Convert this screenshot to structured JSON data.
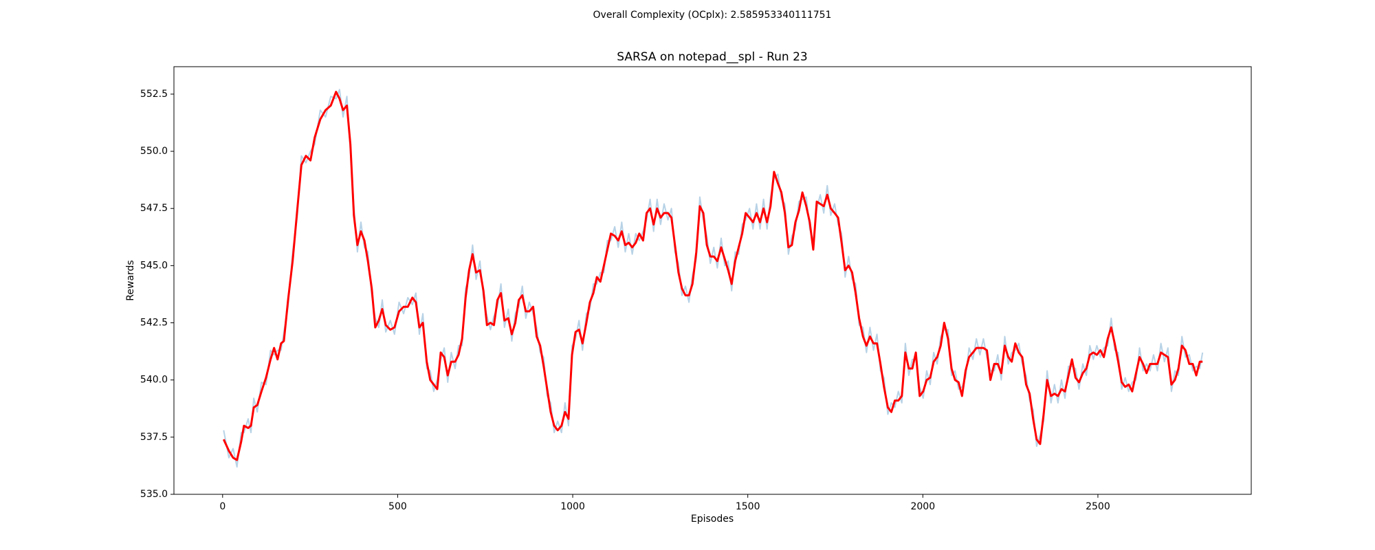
{
  "chart_data": {
    "type": "line",
    "suptitle": "Overall Complexity (OCplx): 2.585953340111751",
    "suptitle_color": "#ff0000",
    "title": "SARSA on notepad__spl - Run 23",
    "xlabel": "Episodes",
    "ylabel": "Rewards",
    "grid": false,
    "xlim": [
      -139,
      2938
    ],
    "ylim": [
      535,
      553.7
    ],
    "xticks": [
      0,
      500,
      1000,
      1500,
      2000,
      2500
    ],
    "yticks": [
      {
        "value": 535,
        "label": "535.0"
      },
      537.5,
      {
        "value": 540,
        "label": "540.0"
      },
      542.5,
      {
        "value": 545,
        "label": "545.0"
      },
      547.5,
      {
        "value": 550,
        "label": "550.0"
      },
      552.5
    ],
    "x": [
      3,
      18,
      30,
      41,
      53,
      61,
      73,
      81,
      89,
      99,
      111,
      124,
      137,
      147,
      157,
      167,
      175,
      187,
      200,
      213,
      225,
      238,
      251,
      263,
      279,
      294,
      309,
      324,
      334,
      344,
      355,
      365,
      375,
      385,
      395,
      405,
      415,
      426,
      436,
      446,
      456,
      466,
      479,
      491,
      504,
      517,
      529,
      542,
      552,
      562,
      572,
      583,
      593,
      603,
      613,
      623,
      633,
      643,
      653,
      664,
      674,
      684,
      694,
      704,
      714,
      724,
      735,
      745,
      755,
      765,
      775,
      785,
      795,
      805,
      816,
      826,
      836,
      846,
      856,
      866,
      876,
      887,
      897,
      907,
      917,
      927,
      937,
      947,
      957,
      968,
      978,
      988,
      998,
      1008,
      1018,
      1028,
      1039,
      1049,
      1059,
      1069,
      1079,
      1089,
      1099,
      1109,
      1120,
      1130,
      1140,
      1150,
      1160,
      1170,
      1180,
      1190,
      1201,
      1211,
      1221,
      1231,
      1241,
      1251,
      1261,
      1272,
      1282,
      1292,
      1302,
      1312,
      1322,
      1332,
      1342,
      1353,
      1363,
      1373,
      1383,
      1393,
      1403,
      1413,
      1424,
      1434,
      1444,
      1454,
      1464,
      1474,
      1484,
      1494,
      1505,
      1515,
      1525,
      1535,
      1545,
      1555,
      1565,
      1575,
      1586,
      1596,
      1606,
      1616,
      1626,
      1636,
      1646,
      1656,
      1667,
      1677,
      1687,
      1697,
      1707,
      1717,
      1727,
      1737,
      1748,
      1758,
      1768,
      1778,
      1788,
      1798,
      1808,
      1818,
      1829,
      1839,
      1849,
      1859,
      1869,
      1879,
      1889,
      1900,
      1910,
      1920,
      1930,
      1940,
      1950,
      1960,
      1970,
      1980,
      1991,
      2001,
      2011,
      2021,
      2031,
      2041,
      2051,
      2061,
      2072,
      2082,
      2092,
      2102,
      2112,
      2122,
      2132,
      2143,
      2153,
      2163,
      2173,
      2183,
      2193,
      2204,
      2214,
      2224,
      2234,
      2244,
      2254,
      2264,
      2274,
      2284,
      2295,
      2305,
      2315,
      2325,
      2335,
      2345,
      2355,
      2366,
      2376,
      2386,
      2396,
      2406,
      2416,
      2426,
      2436,
      2446,
      2457,
      2467,
      2477,
      2487,
      2497,
      2507,
      2517,
      2528,
      2538,
      2548,
      2558,
      2568,
      2578,
      2588,
      2598,
      2609,
      2619,
      2629,
      2639,
      2649,
      2659,
      2670,
      2680,
      2690,
      2700,
      2710,
      2720,
      2730,
      2740,
      2750,
      2761,
      2771,
      2781,
      2791,
      2799
    ],
    "series": [
      {
        "color": "#b7d2e6",
        "width": 2,
        "values": [
          537.8,
          536.6,
          537.0,
          536.2,
          537.7,
          537.7,
          538.3,
          537.7,
          539.2,
          538.6,
          539.9,
          539.8,
          541.3,
          541.1,
          541.3,
          541.3,
          542.1,
          543.2,
          545.6,
          547.1,
          549.8,
          549.5,
          550.0,
          550.3,
          551.8,
          551.5,
          552.4,
          552.3,
          552.7,
          551.5,
          552.4,
          550.0,
          547.6,
          545.6,
          546.9,
          545.8,
          545.6,
          543.7,
          542.7,
          542.3,
          543.5,
          542.1,
          542.6,
          542.0,
          543.4,
          542.9,
          543.6,
          543.3,
          543.8,
          542.0,
          542.9,
          540.5,
          540.4,
          539.5,
          540.0,
          540.9,
          541.4,
          539.9,
          541.2,
          540.5,
          541.5,
          541.5,
          544.0,
          544.5,
          545.9,
          544.4,
          545.2,
          543.6,
          542.8,
          542.2,
          542.8,
          543.2,
          544.2,
          542.3,
          543.1,
          541.7,
          542.9,
          543.2,
          544.1,
          542.7,
          543.4,
          542.9,
          542.3,
          541.2,
          541.0,
          539.3,
          539.0,
          537.7,
          538.2,
          537.7,
          539.0,
          538.0,
          541.5,
          541.8,
          542.6,
          541.3,
          542.9,
          543.1,
          544.2,
          544.2,
          544.7,
          544.7,
          546.1,
          546.1,
          546.7,
          545.8,
          546.9,
          545.6,
          546.4,
          545.5,
          546.4,
          546.1,
          546.5,
          547.0,
          547.9,
          546.5,
          547.9,
          546.8,
          547.7,
          547.0,
          547.5,
          545.6,
          545.1,
          543.7,
          544.1,
          543.4,
          544.6,
          545.3,
          548.0,
          547.0,
          546.3,
          545.1,
          545.8,
          544.9,
          546.2,
          545.0,
          545.2,
          543.9,
          545.6,
          545.5,
          546.8,
          547.0,
          547.5,
          546.6,
          547.7,
          546.6,
          547.9,
          546.6,
          548.0,
          548.8,
          549.0,
          547.9,
          547.7,
          545.5,
          546.3,
          546.6,
          547.8,
          547.9,
          548.0,
          546.6,
          546.1,
          547.5,
          548.1,
          547.3,
          548.5,
          547.2,
          547.7,
          546.8,
          546.4,
          544.5,
          545.4,
          544.4,
          544.2,
          542.4,
          542.3,
          541.2,
          542.3,
          541.3,
          542.0,
          540.4,
          540.1,
          538.5,
          539.0,
          538.8,
          539.5,
          539.0,
          541.6,
          540.2,
          540.9,
          540.9,
          539.7,
          539.2,
          540.4,
          539.8,
          541.2,
          540.7,
          541.9,
          542.2,
          542.2,
          540.2,
          540.4,
          539.6,
          539.7,
          540.1,
          541.4,
          540.9,
          541.8,
          541.1,
          541.8,
          541.0,
          540.4,
          540.4,
          541.1,
          540.0,
          541.9,
          540.7,
          541.2,
          541.3,
          541.6,
          540.7,
          540.2,
          539.1,
          538.7,
          537.1,
          537.6,
          538.2,
          540.4,
          539.0,
          539.8,
          539.0,
          540.0,
          539.2,
          540.6,
          540.6,
          540.5,
          539.6,
          540.7,
          540.2,
          541.5,
          540.9,
          541.5,
          541.0,
          541.4,
          541.5,
          542.7,
          541.3,
          541.2,
          539.6,
          540.1,
          539.5,
          539.9,
          540.0,
          541.4,
          540.4,
          540.7,
          540.4,
          541.1,
          540.4,
          541.6,
          540.8,
          541.4,
          539.5,
          540.4,
          540.2,
          541.9,
          541.0,
          541.1,
          540.4,
          540.6,
          540.5,
          541.2
        ]
      },
      {
        "color": "#ff0000",
        "width": 3,
        "values": [
          537.4,
          536.9,
          536.6,
          536.5,
          537.3,
          538.0,
          537.9,
          538.0,
          538.8,
          538.9,
          539.5,
          540.1,
          540.9,
          541.4,
          540.9,
          541.6,
          541.7,
          543.5,
          545.2,
          547.4,
          549.4,
          549.8,
          549.6,
          550.6,
          551.4,
          551.8,
          552.0,
          552.6,
          552.3,
          551.8,
          552.0,
          550.3,
          547.2,
          545.9,
          546.5,
          546.1,
          545.2,
          544.0,
          542.3,
          542.6,
          543.1,
          542.4,
          542.2,
          542.3,
          543.0,
          543.2,
          543.2,
          543.6,
          543.4,
          542.3,
          542.5,
          540.8,
          540.0,
          539.8,
          539.6,
          541.2,
          541.0,
          540.2,
          540.8,
          540.8,
          541.1,
          541.8,
          543.6,
          544.8,
          545.5,
          544.7,
          544.8,
          543.9,
          542.4,
          542.5,
          542.4,
          543.5,
          543.8,
          542.6,
          542.7,
          542.0,
          542.5,
          543.5,
          543.7,
          543.0,
          543.0,
          543.2,
          541.9,
          541.5,
          540.6,
          539.6,
          538.6,
          538.0,
          537.8,
          538.0,
          538.6,
          538.3,
          541.1,
          542.1,
          542.2,
          541.6,
          542.5,
          543.4,
          543.8,
          544.5,
          544.3,
          545.0,
          545.7,
          546.4,
          546.3,
          546.1,
          546.5,
          545.9,
          546.0,
          545.8,
          546.0,
          546.4,
          546.1,
          547.3,
          547.5,
          546.8,
          547.5,
          547.1,
          547.3,
          547.3,
          547.1,
          545.9,
          544.7,
          544.0,
          543.7,
          543.7,
          544.2,
          545.6,
          547.6,
          547.3,
          545.9,
          545.4,
          545.4,
          545.2,
          545.8,
          545.3,
          544.8,
          544.2,
          545.2,
          545.8,
          546.4,
          547.3,
          547.1,
          546.9,
          547.3,
          546.9,
          547.5,
          546.9,
          547.6,
          549.1,
          548.6,
          548.2,
          547.3,
          545.8,
          545.9,
          546.9,
          547.4,
          548.2,
          547.6,
          546.9,
          545.7,
          547.8,
          547.7,
          547.6,
          548.1,
          547.5,
          547.3,
          547.1,
          546.0,
          544.8,
          545.0,
          544.7,
          543.8,
          542.7,
          541.9,
          541.5,
          541.9,
          541.6,
          541.6,
          540.7,
          539.7,
          538.8,
          538.6,
          539.1,
          539.1,
          539.3,
          541.2,
          540.5,
          540.5,
          541.2,
          539.3,
          539.5,
          540.0,
          540.1,
          540.8,
          541.0,
          541.5,
          542.5,
          541.8,
          540.5,
          540.0,
          539.9,
          539.3,
          540.4,
          541.0,
          541.2,
          541.4,
          541.4,
          541.4,
          541.3,
          540.0,
          540.7,
          540.7,
          540.3,
          541.5,
          541.0,
          540.8,
          541.6,
          541.2,
          541.0,
          539.8,
          539.4,
          538.3,
          537.4,
          537.2,
          538.5,
          540.0,
          539.3,
          539.4,
          539.3,
          539.6,
          539.5,
          540.2,
          540.9,
          540.1,
          539.9,
          540.3,
          540.5,
          541.1,
          541.2,
          541.1,
          541.3,
          541.0,
          541.8,
          542.3,
          541.6,
          540.8,
          539.9,
          539.7,
          539.8,
          539.5,
          540.3,
          541.0,
          540.7,
          540.3,
          540.7,
          540.7,
          540.7,
          541.2,
          541.1,
          541.0,
          539.8,
          540.0,
          540.5,
          541.5,
          541.3,
          540.7,
          540.7,
          540.2,
          540.8,
          540.8
        ]
      }
    ]
  }
}
